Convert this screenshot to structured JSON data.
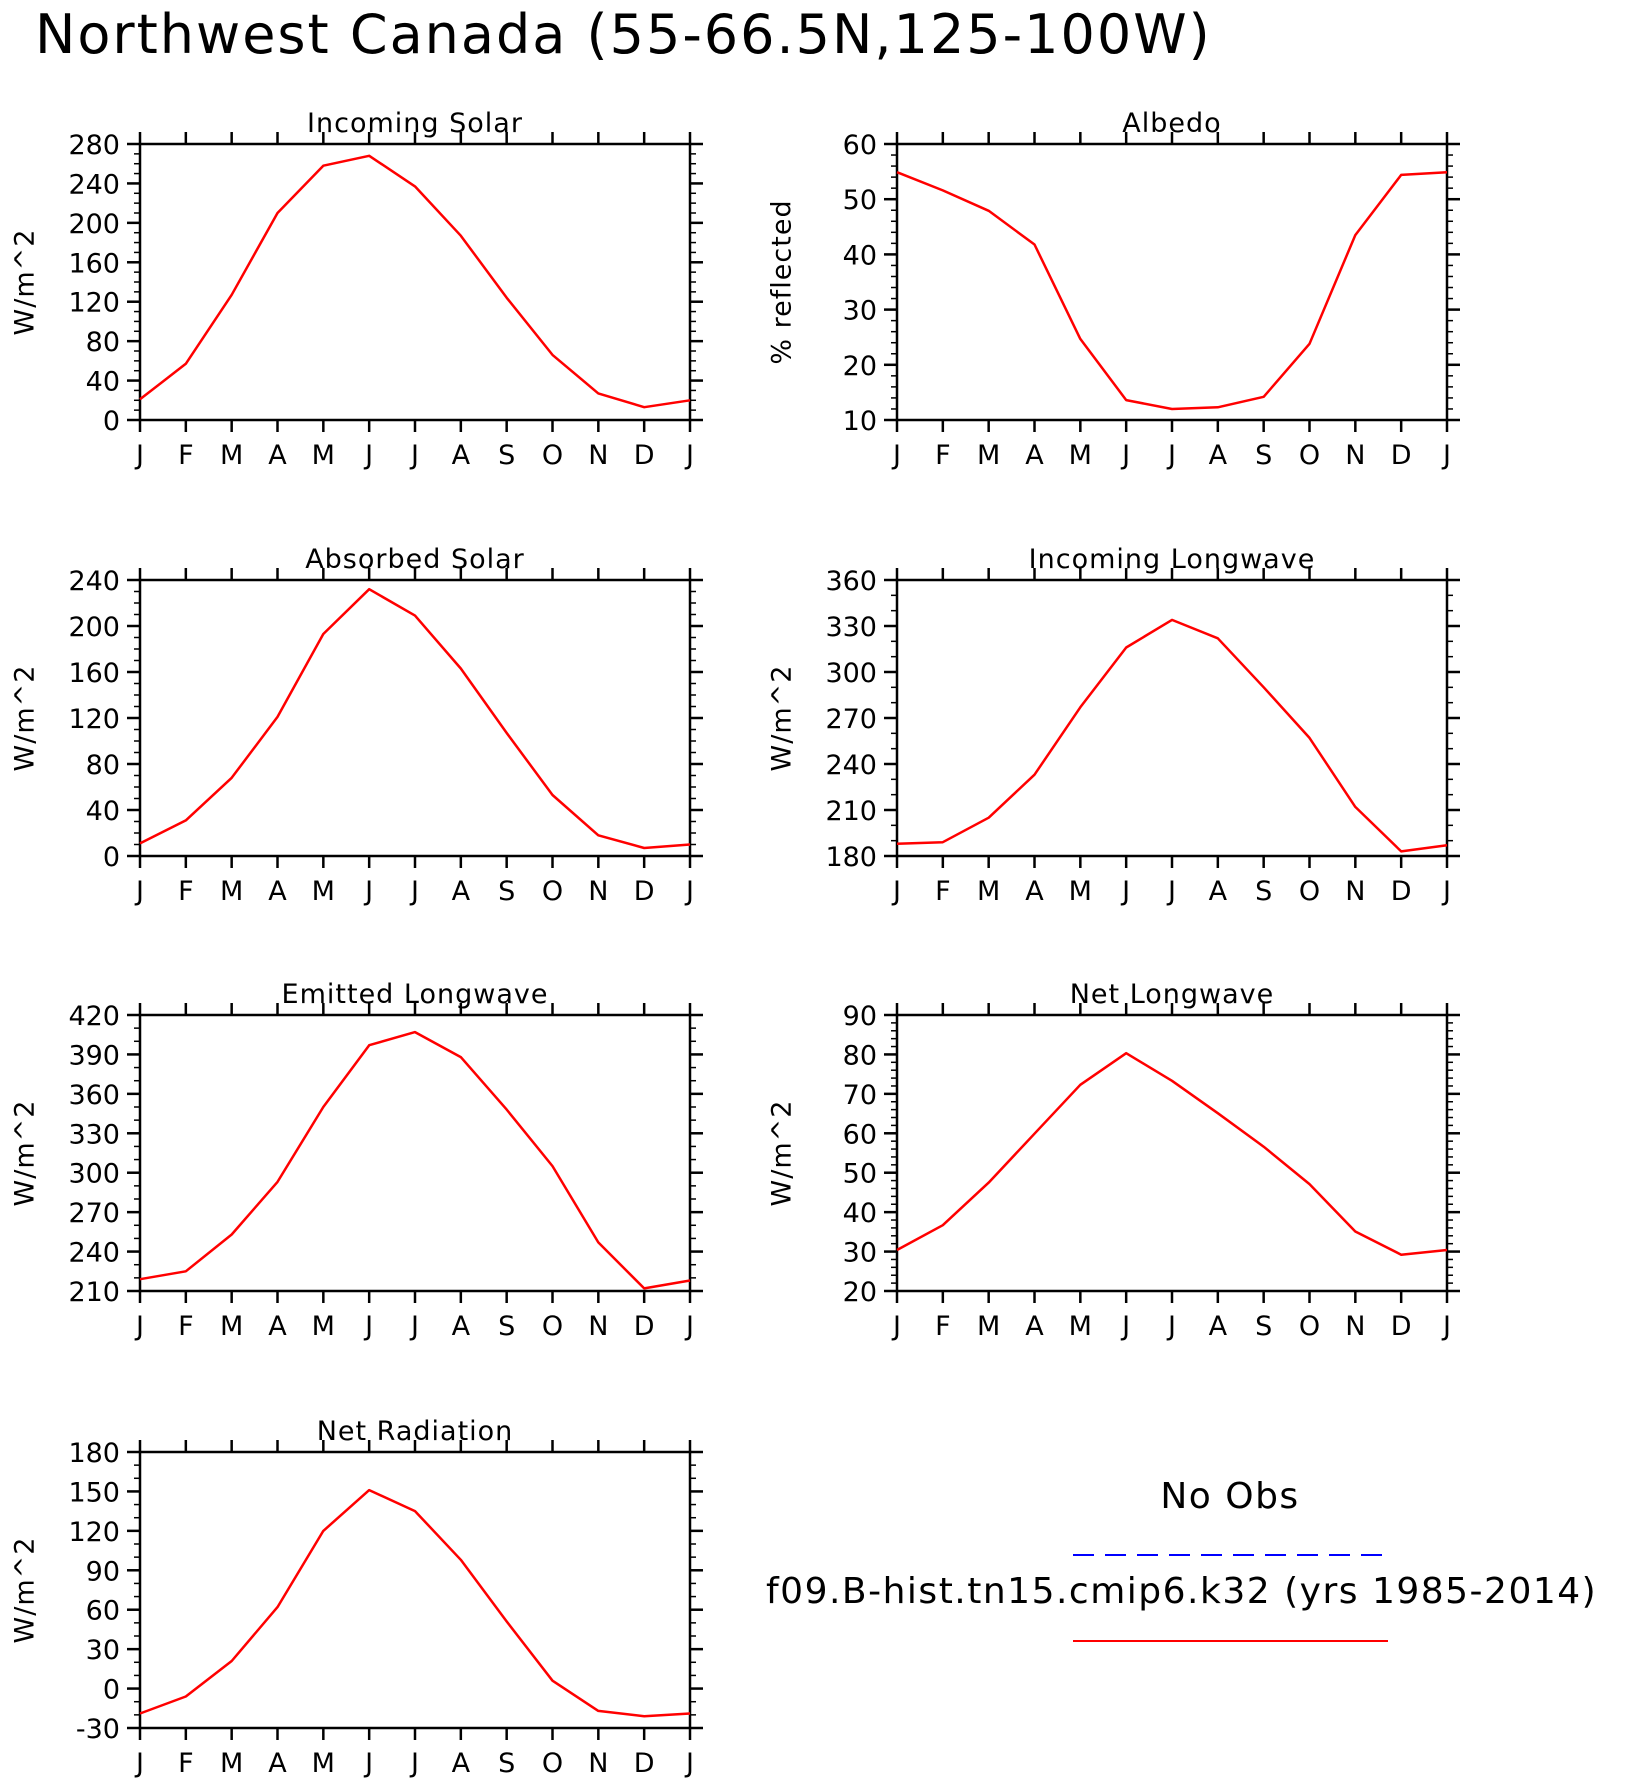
{
  "figure_title": "Northwest Canada (55-66.5N,125-100W)",
  "months": [
    "J",
    "F",
    "M",
    "A",
    "M",
    "J",
    "J",
    "A",
    "S",
    "O",
    "N",
    "D",
    "J"
  ],
  "legend": {
    "obs_label": "No Obs",
    "model_label": "f09.B-hist.tn15.cmip6.k32 (yrs 1985-2014)",
    "obs_color": "#0000ff",
    "model_color": "#ff0000"
  },
  "chart_data": [
    {
      "id": "incoming-solar",
      "type": "line",
      "title": "Incoming Solar",
      "ylabel": "W/m^2",
      "ylim": [
        0,
        280
      ],
      "yticks": [
        0,
        40,
        80,
        120,
        160,
        200,
        240,
        280
      ],
      "yminor": 10,
      "categories": [
        "J",
        "F",
        "M",
        "A",
        "M",
        "J",
        "J",
        "A",
        "S",
        "O",
        "N",
        "D",
        "J"
      ],
      "series": [
        {
          "color": "#ff0000",
          "values": [
            21,
            57,
            127,
            210,
            258,
            268,
            237,
            187,
            124,
            66,
            27,
            13,
            20
          ]
        }
      ]
    },
    {
      "id": "albedo",
      "type": "line",
      "title": "Albedo",
      "ylabel": "% reflected",
      "ylim": [
        10,
        60
      ],
      "yticks": [
        10,
        20,
        30,
        40,
        50,
        60
      ],
      "yminor": 2,
      "categories": [
        "J",
        "F",
        "M",
        "A",
        "M",
        "J",
        "J",
        "A",
        "S",
        "O",
        "N",
        "D",
        "J"
      ],
      "series": [
        {
          "color": "#ff0000",
          "values": [
            54.9,
            51.6,
            47.9,
            41.8,
            24.7,
            13.6,
            12.0,
            12.3,
            14.2,
            23.8,
            43.5,
            54.4,
            54.9
          ]
        }
      ]
    },
    {
      "id": "absorbed-solar",
      "type": "line",
      "title": "Absorbed Solar",
      "ylabel": "W/m^2",
      "ylim": [
        0,
        240
      ],
      "yticks": [
        0,
        40,
        80,
        120,
        160,
        200,
        240
      ],
      "yminor": 10,
      "categories": [
        "J",
        "F",
        "M",
        "A",
        "M",
        "J",
        "J",
        "A",
        "S",
        "O",
        "N",
        "D",
        "J"
      ],
      "series": [
        {
          "color": "#ff0000",
          "values": [
            11,
            31,
            68,
            121,
            193,
            232,
            209,
            163,
            107,
            53,
            18,
            7,
            10
          ]
        }
      ]
    },
    {
      "id": "incoming-longwave",
      "type": "line",
      "title": "Incoming Longwave",
      "ylabel": "W/m^2",
      "ylim": [
        180,
        360
      ],
      "yticks": [
        180,
        210,
        240,
        270,
        300,
        330,
        360
      ],
      "yminor": 10,
      "categories": [
        "J",
        "F",
        "M",
        "A",
        "M",
        "J",
        "J",
        "A",
        "S",
        "O",
        "N",
        "D",
        "J"
      ],
      "series": [
        {
          "color": "#ff0000",
          "values": [
            188,
            189,
            205,
            233,
            277,
            316,
            334,
            322,
            290,
            257,
            212,
            183,
            187
          ]
        }
      ]
    },
    {
      "id": "emitted-longwave",
      "type": "line",
      "title": "Emitted Longwave",
      "ylabel": "W/m^2",
      "ylim": [
        210,
        420
      ],
      "yticks": [
        210,
        240,
        270,
        300,
        330,
        360,
        390,
        420
      ],
      "yminor": 10,
      "categories": [
        "J",
        "F",
        "M",
        "A",
        "M",
        "J",
        "J",
        "A",
        "S",
        "O",
        "N",
        "D",
        "J"
      ],
      "series": [
        {
          "color": "#ff0000",
          "values": [
            219,
            225,
            253,
            293,
            350,
            397,
            407,
            388,
            348,
            305,
            247,
            212,
            218
          ]
        }
      ]
    },
    {
      "id": "net-longwave",
      "type": "line",
      "title": "Net Longwave",
      "ylabel": "W/m^2",
      "ylim": [
        20,
        90
      ],
      "yticks": [
        20,
        30,
        40,
        50,
        60,
        70,
        80,
        90
      ],
      "yminor": 2,
      "categories": [
        "J",
        "F",
        "M",
        "A",
        "M",
        "J",
        "J",
        "A",
        "S",
        "O",
        "N",
        "D",
        "J"
      ],
      "series": [
        {
          "color": "#ff0000",
          "values": [
            30.4,
            36.7,
            47.5,
            59.9,
            72.3,
            80.3,
            73.3,
            65.1,
            56.6,
            47.1,
            35.1,
            29.2,
            30.4
          ]
        }
      ]
    },
    {
      "id": "net-radiation",
      "type": "line",
      "title": "Net Radiation",
      "ylabel": "W/m^2",
      "ylim": [
        -30,
        180
      ],
      "yticks": [
        -30,
        0,
        30,
        60,
        90,
        120,
        150,
        180
      ],
      "yminor": 10,
      "categories": [
        "J",
        "F",
        "M",
        "A",
        "M",
        "J",
        "J",
        "A",
        "S",
        "O",
        "N",
        "D",
        "J"
      ],
      "series": [
        {
          "color": "#ff0000",
          "values": [
            -19,
            -6,
            21,
            62,
            120,
            151,
            135,
            98,
            51,
            6,
            -17,
            -21,
            -19
          ]
        }
      ]
    }
  ]
}
